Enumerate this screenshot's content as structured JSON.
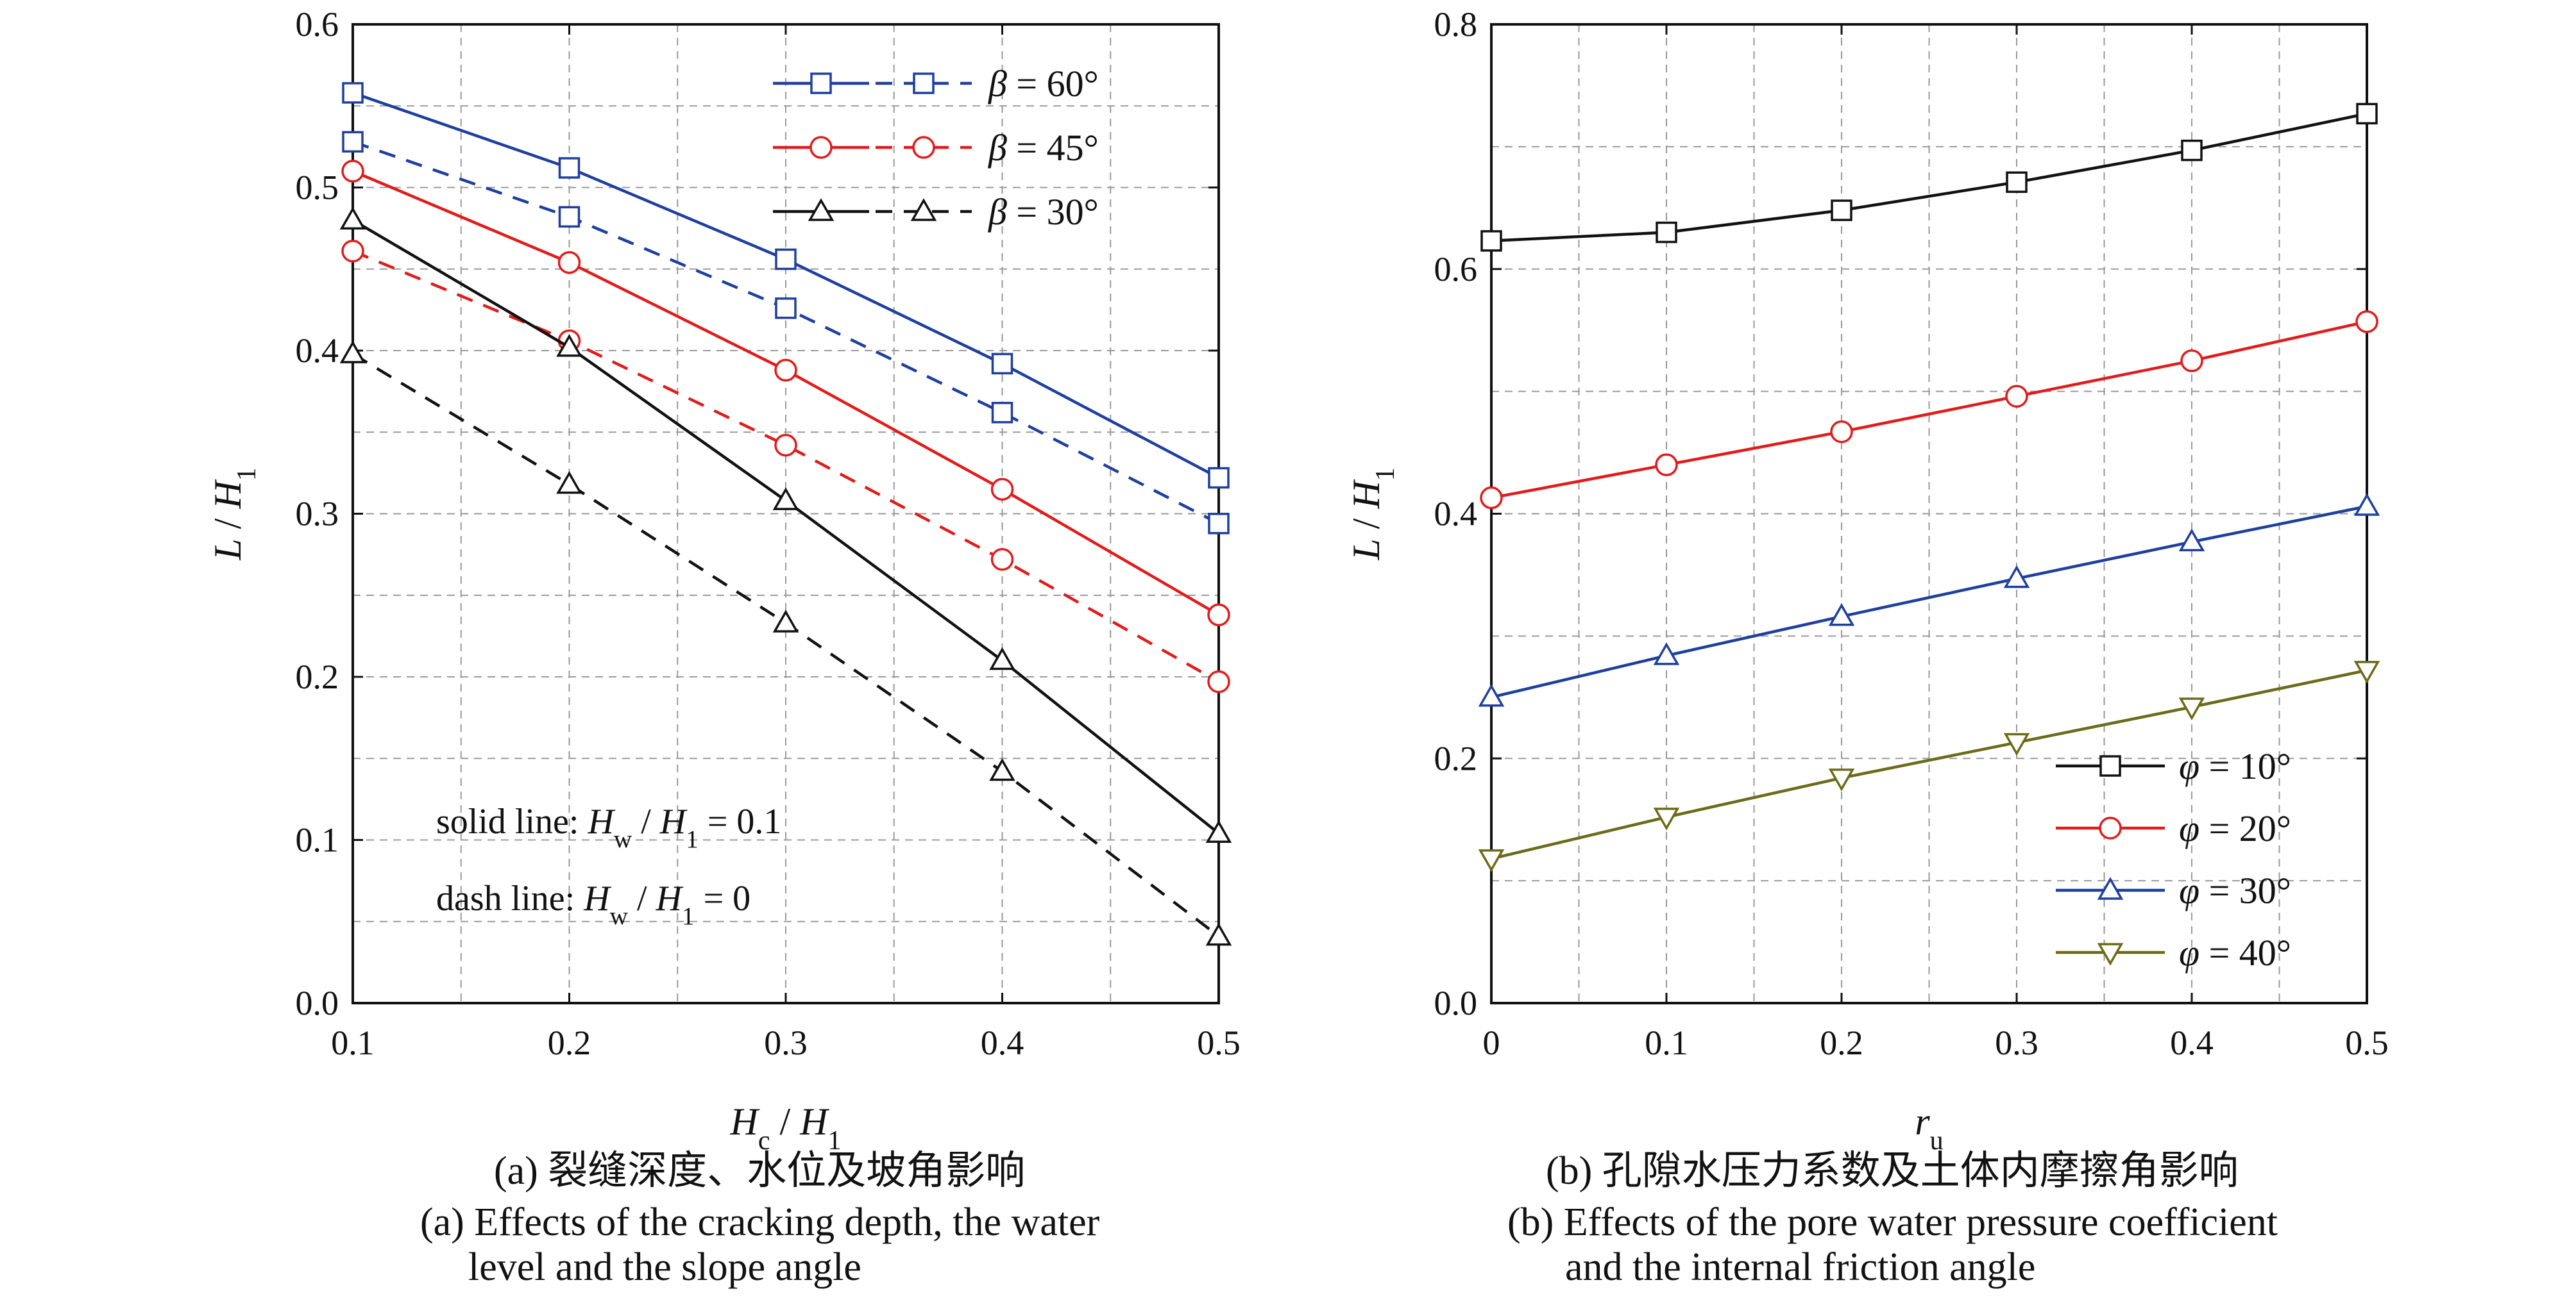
{
  "chart_data": [
    {
      "type": "line",
      "x": [
        0.1,
        0.2,
        0.3,
        0.4,
        0.5
      ],
      "xlabel": "Hc/H1",
      "ylabel": "L/H1",
      "xlim": [
        0.1,
        0.5
      ],
      "ylim": [
        0.0,
        0.6
      ],
      "xticks": [
        "0.1",
        "0.2",
        "0.3",
        "0.4",
        "0.5"
      ],
      "yticks": [
        "0.0",
        "0.1",
        "0.2",
        "0.3",
        "0.4",
        "0.5",
        "0.6"
      ],
      "grid": true,
      "legend_position": "top-right",
      "series": [
        {
          "name": "β = 60°",
          "style": "solid",
          "marker": "square",
          "color": "#1f3f9f",
          "values": [
            0.558,
            0.512,
            0.456,
            0.392,
            0.322
          ]
        },
        {
          "name": "β = 60°",
          "style": "dash",
          "marker": "square",
          "color": "#1f3f9f",
          "values": [
            0.528,
            0.482,
            0.426,
            0.362,
            0.294
          ]
        },
        {
          "name": "β = 45°",
          "style": "solid",
          "marker": "circle",
          "color": "#e21b1b",
          "values": [
            0.51,
            0.454,
            0.388,
            0.315,
            0.238
          ]
        },
        {
          "name": "β = 45°",
          "style": "dash",
          "marker": "circle",
          "color": "#e21b1b",
          "values": [
            0.461,
            0.406,
            0.342,
            0.272,
            0.197
          ]
        },
        {
          "name": "β = 30°",
          "style": "solid",
          "marker": "triangle-up",
          "color": "#111111",
          "values": [
            0.48,
            0.402,
            0.308,
            0.21,
            0.104
          ]
        },
        {
          "name": "β = 30°",
          "style": "dash",
          "marker": "triangle-up",
          "color": "#111111",
          "values": [
            0.398,
            0.318,
            0.233,
            0.142,
            0.041
          ]
        }
      ],
      "annotations": [
        "solid line:  Hw/H1 = 0.1",
        "dash line:  Hw/H1 = 0"
      ]
    },
    {
      "type": "line",
      "x": [
        0,
        0.1,
        0.2,
        0.3,
        0.4,
        0.5
      ],
      "xlabel": "ru",
      "ylabel": "L/H1",
      "xlim": [
        0,
        0.5
      ],
      "ylim": [
        0.0,
        0.8
      ],
      "xticks": [
        "0",
        "0.1",
        "0.2",
        "0.3",
        "0.4",
        "0.5"
      ],
      "yticks": [
        "0.0",
        "0.2",
        "0.4",
        "0.6",
        "0.8"
      ],
      "grid": true,
      "legend_position": "bottom-right",
      "series": [
        {
          "name": "φ = 10°",
          "marker": "square",
          "color": "#111111",
          "values": [
            0.623,
            0.63,
            0.648,
            0.671,
            0.697,
            0.727
          ]
        },
        {
          "name": "φ = 20°",
          "marker": "circle",
          "color": "#e21b1b",
          "values": [
            0.413,
            0.44,
            0.467,
            0.496,
            0.525,
            0.557
          ]
        },
        {
          "name": "φ = 30°",
          "marker": "triangle-up",
          "color": "#1f3f9f",
          "values": [
            0.25,
            0.284,
            0.316,
            0.347,
            0.377,
            0.406
          ]
        },
        {
          "name": "φ = 40°",
          "marker": "triangle-down",
          "color": "#6b6b19",
          "values": [
            0.118,
            0.152,
            0.184,
            0.213,
            0.242,
            0.272
          ]
        }
      ]
    }
  ],
  "captions": {
    "a_cn": "(a) 裂缝深度、水位及坡角影响",
    "a_en_1": "(a) Effects of the cracking depth, the water",
    "a_en_2": "level and the slope angle",
    "b_cn": "(b) 孔隙水压力系数及土体内摩擦角影响",
    "b_en_1": "(b) Effects of the pore water pressure coefficient",
    "b_en_2": "and the internal friction angle"
  }
}
